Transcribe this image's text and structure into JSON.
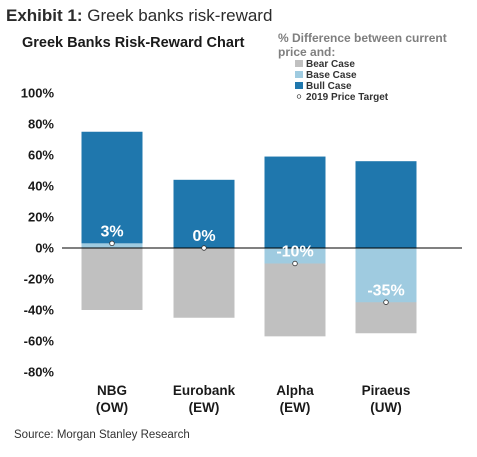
{
  "exhibit": {
    "label": "Exhibit 1:",
    "title": "Greek banks risk-reward"
  },
  "source": "Source: Morgan Stanley Research",
  "chart_data": {
    "type": "bar",
    "title": "Greek Banks Risk-Reward Chart",
    "legend_title": "% Difference between current price and:",
    "legend_placement": "top-right",
    "categories": [
      {
        "name": "NBG",
        "rating": "(OW)"
      },
      {
        "name": "Eurobank",
        "rating": "(EW)"
      },
      {
        "name": "Alpha",
        "rating": "(EW)"
      },
      {
        "name": "Piraeus",
        "rating": "(UW)"
      }
    ],
    "series": [
      {
        "name": "Bear Case",
        "values": [
          -40,
          -45,
          -57,
          -55
        ],
        "color": "#c0c0c0"
      },
      {
        "name": "Base Case",
        "values": [
          3,
          0,
          -10,
          -35
        ],
        "color": "#9fcbe0"
      },
      {
        "name": "Bull Case",
        "values": [
          75,
          44,
          59,
          56
        ],
        "color": "#1f77ad"
      }
    ],
    "price_target": {
      "name": "2019 Price Target",
      "values": [
        3,
        0,
        -10,
        -35
      ]
    },
    "data_labels": [
      "3%",
      "0%",
      "-10%",
      "-35%"
    ],
    "yticks": [
      "100%",
      "80%",
      "60%",
      "40%",
      "20%",
      "0%",
      "-20%",
      "-40%",
      "-60%",
      "-80%"
    ],
    "ylim": [
      -80,
      100
    ],
    "grid": false
  }
}
